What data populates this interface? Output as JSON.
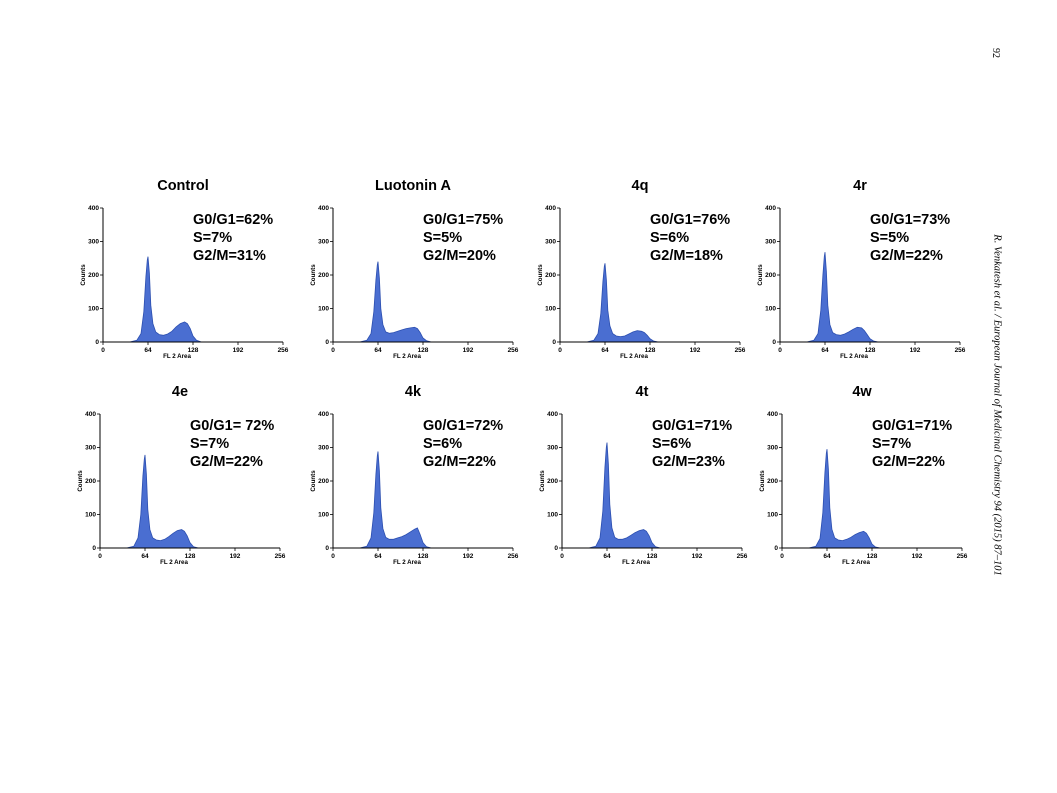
{
  "page": {
    "number": "92",
    "running_head": "R. Venkatesh et al. / European Journal of Medicinal Chemistry 94 (2015) 87–101"
  },
  "theme": {
    "fill": "#4a6ed1",
    "stroke": "#2c4fb0",
    "axis": "#000000"
  },
  "chart_data": [
    {
      "type": "area",
      "title": "Control",
      "xlabel": "FL 2 Area",
      "ylabel": "Counts",
      "xlim": [
        0,
        256
      ],
      "ylim": [
        0,
        400
      ],
      "x_ticks": [
        "0",
        "64",
        "128",
        "192",
        "256"
      ],
      "y_ticks": [
        "0",
        "100",
        "200",
        "300",
        "400"
      ],
      "annotations": [
        "G0/G1=62%",
        "S=7%",
        "G2/M=31%"
      ],
      "series": [
        {
          "x": [
            38,
            48,
            54,
            58,
            61,
            63,
            64,
            66,
            68,
            71,
            75,
            80,
            86,
            92,
            98,
            104,
            110,
            116,
            120,
            124,
            128,
            133,
            140
          ],
          "y": [
            0,
            5,
            25,
            90,
            195,
            245,
            255,
            205,
            110,
            55,
            30,
            22,
            20,
            24,
            32,
            45,
            55,
            60,
            55,
            40,
            18,
            5,
            0
          ]
        }
      ]
    },
    {
      "type": "area",
      "title": "Luotonin A",
      "xlabel": "FL 2 Area",
      "ylabel": "Counts",
      "xlim": [
        0,
        256
      ],
      "ylim": [
        0,
        400
      ],
      "x_ticks": [
        "0",
        "64",
        "128",
        "192",
        "256"
      ],
      "y_ticks": [
        "0",
        "100",
        "200",
        "300",
        "400"
      ],
      "annotations": [
        "G0/G1=75%",
        "S=5%",
        "G2/M=20%"
      ],
      "series": [
        {
          "x": [
            38,
            48,
            54,
            58,
            61,
            63,
            64,
            66,
            68,
            71,
            75,
            80,
            86,
            92,
            98,
            104,
            110,
            116,
            120,
            124,
            128,
            133,
            140
          ],
          "y": [
            0,
            5,
            25,
            90,
            185,
            230,
            240,
            190,
            100,
            52,
            30,
            26,
            28,
            32,
            36,
            40,
            42,
            44,
            40,
            28,
            12,
            4,
            0
          ]
        }
      ]
    },
    {
      "type": "area",
      "title": "4q",
      "xlabel": "FL 2 Area",
      "ylabel": "Counts",
      "xlim": [
        0,
        256
      ],
      "ylim": [
        0,
        400
      ],
      "x_ticks": [
        "0",
        "64",
        "128",
        "192",
        "256"
      ],
      "y_ticks": [
        "0",
        "100",
        "200",
        "300",
        "400"
      ],
      "annotations": [
        "G0/G1=76%",
        "S=6%",
        "G2/M=18%"
      ],
      "series": [
        {
          "x": [
            38,
            48,
            54,
            58,
            61,
            63,
            64,
            66,
            68,
            71,
            75,
            80,
            86,
            92,
            98,
            104,
            110,
            116,
            120,
            124,
            128,
            133,
            140
          ],
          "y": [
            0,
            5,
            25,
            85,
            180,
            225,
            235,
            185,
            95,
            48,
            25,
            18,
            16,
            18,
            24,
            30,
            34,
            32,
            28,
            20,
            10,
            3,
            0
          ]
        }
      ]
    },
    {
      "type": "area",
      "title": "4r",
      "xlabel": "FL 2 Area",
      "ylabel": "Counts",
      "xlim": [
        0,
        256
      ],
      "ylim": [
        0,
        400
      ],
      "x_ticks": [
        "0",
        "64",
        "128",
        "192",
        "256"
      ],
      "y_ticks": [
        "0",
        "100",
        "200",
        "300",
        "400"
      ],
      "annotations": [
        "G0/G1=73%",
        "S=5%",
        "G2/M=22%"
      ],
      "series": [
        {
          "x": [
            38,
            48,
            54,
            58,
            61,
            63,
            64,
            66,
            68,
            71,
            75,
            80,
            86,
            92,
            98,
            104,
            110,
            116,
            120,
            124,
            128,
            133,
            140
          ],
          "y": [
            0,
            5,
            25,
            95,
            200,
            255,
            268,
            210,
            110,
            52,
            28,
            22,
            20,
            24,
            30,
            38,
            44,
            42,
            34,
            22,
            10,
            3,
            0
          ]
        }
      ]
    },
    {
      "type": "area",
      "title": "4e",
      "xlabel": "FL 2 Area",
      "ylabel": "Counts",
      "xlim": [
        0,
        256
      ],
      "ylim": [
        0,
        400
      ],
      "x_ticks": [
        "0",
        "64",
        "128",
        "192",
        "256"
      ],
      "y_ticks": [
        "0",
        "100",
        "200",
        "300",
        "400"
      ],
      "annotations": [
        "G0/G1= 72%",
        "S=7%",
        "G2/M=22%"
      ],
      "series": [
        {
          "x": [
            38,
            48,
            54,
            58,
            61,
            63,
            64,
            66,
            68,
            71,
            75,
            80,
            86,
            92,
            98,
            104,
            110,
            116,
            120,
            124,
            128,
            133,
            140
          ],
          "y": [
            0,
            5,
            30,
            100,
            215,
            265,
            278,
            220,
            115,
            55,
            30,
            24,
            22,
            26,
            34,
            44,
            52,
            55,
            50,
            36,
            16,
            4,
            0
          ]
        }
      ]
    },
    {
      "type": "area",
      "title": "4k",
      "xlabel": "FL 2 Area",
      "ylabel": "Counts",
      "xlim": [
        0,
        256
      ],
      "ylim": [
        0,
        400
      ],
      "x_ticks": [
        "0",
        "64",
        "128",
        "192",
        "256"
      ],
      "y_ticks": [
        "0",
        "100",
        "200",
        "300",
        "400"
      ],
      "annotations": [
        "G0/G1=72%",
        "S=6%",
        "G2/M=22%"
      ],
      "series": [
        {
          "x": [
            38,
            48,
            54,
            58,
            61,
            63,
            64,
            66,
            68,
            71,
            75,
            80,
            86,
            92,
            98,
            104,
            110,
            116,
            120,
            124,
            128,
            133,
            140
          ],
          "y": [
            0,
            5,
            30,
            105,
            220,
            275,
            288,
            230,
            120,
            58,
            32,
            26,
            26,
            30,
            34,
            40,
            48,
            56,
            60,
            40,
            16,
            4,
            0
          ]
        }
      ]
    },
    {
      "type": "area",
      "title": "4t",
      "xlabel": "FL 2 Area",
      "ylabel": "Counts",
      "xlim": [
        0,
        256
      ],
      "ylim": [
        0,
        400
      ],
      "x_ticks": [
        "0",
        "64",
        "128",
        "192",
        "256"
      ],
      "y_ticks": [
        "0",
        "100",
        "200",
        "300",
        "400"
      ],
      "annotations": [
        "G0/G1=71%",
        "S=6%",
        "G2/M=23%"
      ],
      "series": [
        {
          "x": [
            38,
            48,
            54,
            58,
            61,
            63,
            64,
            66,
            68,
            71,
            75,
            80,
            86,
            92,
            98,
            104,
            110,
            116,
            120,
            124,
            128,
            133,
            140
          ],
          "y": [
            0,
            5,
            30,
            110,
            240,
            300,
            315,
            250,
            130,
            60,
            32,
            26,
            26,
            30,
            38,
            46,
            52,
            55,
            50,
            36,
            16,
            4,
            0
          ]
        }
      ]
    },
    {
      "type": "area",
      "title": "4w",
      "xlabel": "FL 2 Area",
      "ylabel": "Counts",
      "xlim": [
        0,
        256
      ],
      "ylim": [
        0,
        400
      ],
      "x_ticks": [
        "0",
        "64",
        "128",
        "192",
        "256"
      ],
      "y_ticks": [
        "0",
        "100",
        "200",
        "300",
        "400"
      ],
      "annotations": [
        "G0/G1=71%",
        "S=7%",
        "G2/M=22%"
      ],
      "series": [
        {
          "x": [
            38,
            48,
            54,
            58,
            61,
            63,
            64,
            66,
            68,
            71,
            75,
            80,
            86,
            92,
            98,
            104,
            110,
            116,
            120,
            124,
            128,
            133,
            140
          ],
          "y": [
            0,
            5,
            28,
            105,
            225,
            282,
            295,
            235,
            120,
            56,
            30,
            24,
            22,
            26,
            32,
            40,
            46,
            50,
            44,
            30,
            12,
            3,
            0
          ]
        }
      ]
    }
  ]
}
